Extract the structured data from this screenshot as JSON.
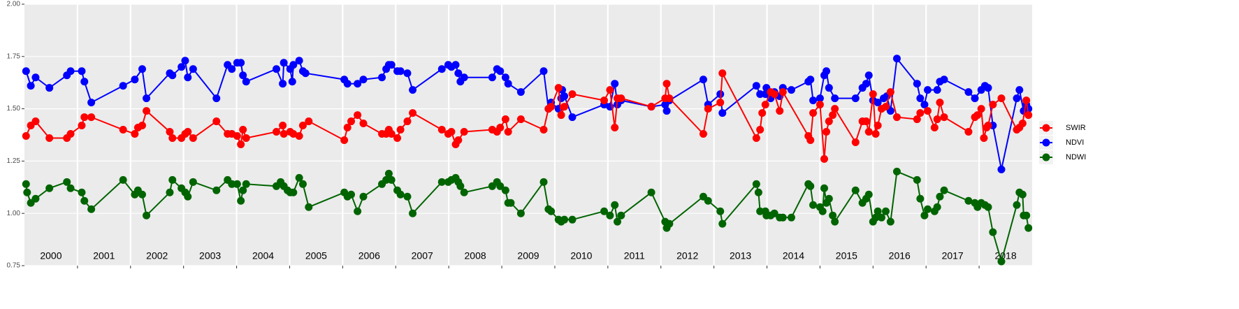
{
  "chart_data": {
    "type": "line",
    "xlim": [
      2000,
      2019
    ],
    "xticks": [
      2001,
      2002,
      2003,
      2004,
      2005,
      2006,
      2007,
      2008,
      2009,
      2010,
      2011,
      2012,
      2013,
      2014,
      2015,
      2016,
      2017,
      2018
    ],
    "year_labels": [
      2000,
      2001,
      2002,
      2003,
      2004,
      2005,
      2006,
      2007,
      2008,
      2009,
      2010,
      2011,
      2012,
      2013,
      2014,
      2015,
      2016,
      2017,
      2018
    ],
    "ylim": [
      0.75,
      2.0
    ],
    "yticks": [
      {
        "value": 0.75,
        "label": "0.75"
      },
      {
        "value": 1,
        "label": "1.00"
      },
      {
        "value": 1.25,
        "label": "1.25"
      },
      {
        "value": 1.5,
        "label": "1.50"
      },
      {
        "value": 1.75,
        "label": "1.75"
      },
      {
        "value": 2,
        "label": "2.00"
      }
    ],
    "grid": true,
    "legend": "right",
    "series": [
      {
        "name": "SWIR",
        "color": "#ff0000",
        "x": [
          2000.03,
          2000.12,
          2000.21,
          2000.47,
          2000.8,
          2000.87,
          2001.08,
          2001.13,
          2001.26,
          2001.86,
          2002.08,
          2002.14,
          2002.22,
          2002.3,
          2002.74,
          2002.79,
          2002.96,
          2003.03,
          2003.08,
          2003.18,
          2003.62,
          2003.83,
          2003.91,
          2004.01,
          2004.08,
          2004.12,
          2004.18,
          2004.75,
          2004.87,
          2004.89,
          2005.01,
          2005.07,
          2005.18,
          2005.25,
          2005.36,
          2006.03,
          2006.09,
          2006.16,
          2006.28,
          2006.39,
          2006.74,
          2006.82,
          2006.87,
          2006.92,
          2007.03,
          2007.09,
          2007.22,
          2007.32,
          2007.87,
          2007.99,
          2008.05,
          2008.13,
          2008.18,
          2008.29,
          2008.82,
          2008.91,
          2008.97,
          2009.07,
          2009.12,
          2009.36,
          2009.79,
          2009.88,
          2009.93,
          2010.07,
          2010.12,
          2010.18,
          2010.33,
          2010.93,
          2011.04,
          2011.13,
          2011.18,
          2011.25,
          2011.82,
          2012.08,
          2012.11,
          2012.16,
          2012.8,
          2012.89,
          2013.12,
          2013.16,
          2013.8,
          2013.87,
          2013.91,
          2013.97,
          2014.07,
          2014.14,
          2014.24,
          2014.3,
          2014.78,
          2014.82,
          2014.87,
          2015.0,
          2015.08,
          2015.12,
          2015.17,
          2015.24,
          2015.28,
          2015.67,
          2015.8,
          2015.87,
          2015.92,
          2016.0,
          2016.05,
          2016.09,
          2016.16,
          2016.24,
          2016.33,
          2016.45,
          2016.83,
          2016.89,
          2017.03,
          2017.16,
          2017.21,
          2017.26,
          2017.34,
          2017.8,
          2017.92,
          2017.97,
          2018.04,
          2018.09,
          2018.14,
          2018.17,
          2018.26,
          2018.42,
          2018.71,
          2018.76,
          2018.82,
          2018.89,
          2018.93
        ],
        "values": [
          1.37,
          1.42,
          1.44,
          1.36,
          1.36,
          1.38,
          1.42,
          1.46,
          1.46,
          1.4,
          1.38,
          1.41,
          1.42,
          1.49,
          1.39,
          1.36,
          1.36,
          1.38,
          1.39,
          1.36,
          1.44,
          1.38,
          1.38,
          1.37,
          1.33,
          1.4,
          1.36,
          1.39,
          1.42,
          1.38,
          1.39,
          1.38,
          1.37,
          1.42,
          1.44,
          1.35,
          1.41,
          1.44,
          1.47,
          1.43,
          1.38,
          1.38,
          1.4,
          1.38,
          1.36,
          1.4,
          1.44,
          1.48,
          1.4,
          1.38,
          1.39,
          1.33,
          1.35,
          1.39,
          1.4,
          1.39,
          1.41,
          1.45,
          1.39,
          1.45,
          1.4,
          1.5,
          1.51,
          1.6,
          1.47,
          1.51,
          1.57,
          1.54,
          1.59,
          1.41,
          1.55,
          1.55,
          1.51,
          1.55,
          1.62,
          1.55,
          1.38,
          1.5,
          1.53,
          1.67,
          1.36,
          1.4,
          1.48,
          1.52,
          1.58,
          1.57,
          1.49,
          1.58,
          1.37,
          1.35,
          1.48,
          1.52,
          1.26,
          1.39,
          1.44,
          1.47,
          1.5,
          1.34,
          1.44,
          1.44,
          1.39,
          1.57,
          1.38,
          1.42,
          1.5,
          1.51,
          1.58,
          1.46,
          1.45,
          1.48,
          1.49,
          1.41,
          1.45,
          1.53,
          1.46,
          1.39,
          1.46,
          1.47,
          1.5,
          1.36,
          1.41,
          1.42,
          1.52,
          1.55,
          1.4,
          1.41,
          1.43,
          1.54,
          1.47
        ]
      },
      {
        "name": "NDVI",
        "color": "#0000ff",
        "x": [
          2000.03,
          2000.12,
          2000.21,
          2000.47,
          2000.8,
          2000.87,
          2001.08,
          2001.13,
          2001.26,
          2001.86,
          2002.08,
          2002.22,
          2002.3,
          2002.74,
          2002.79,
          2002.96,
          2003.03,
          2003.08,
          2003.18,
          2003.62,
          2003.83,
          2003.91,
          2004.01,
          2004.08,
          2004.12,
          2004.18,
          2004.75,
          2004.87,
          2004.89,
          2005.01,
          2005.05,
          2005.07,
          2005.18,
          2005.25,
          2005.3,
          2006.03,
          2006.09,
          2006.28,
          2006.39,
          2006.74,
          2006.82,
          2006.87,
          2006.92,
          2007.03,
          2007.09,
          2007.22,
          2007.32,
          2007.87,
          2007.99,
          2008.05,
          2008.13,
          2008.18,
          2008.22,
          2008.29,
          2008.82,
          2008.91,
          2008.97,
          2009.07,
          2009.12,
          2009.36,
          2009.79,
          2009.88,
          2009.93,
          2010.07,
          2010.12,
          2010.14,
          2010.18,
          2010.33,
          2010.93,
          2011.04,
          2011.13,
          2011.18,
          2011.25,
          2011.82,
          2012.08,
          2012.11,
          2012.16,
          2012.8,
          2012.89,
          2013.12,
          2013.16,
          2013.8,
          2013.87,
          2013.97,
          2013.99,
          2014.07,
          2014.14,
          2014.24,
          2014.3,
          2014.46,
          2014.78,
          2014.82,
          2014.87,
          2015.0,
          2015.08,
          2015.12,
          2015.17,
          2015.28,
          2015.67,
          2015.8,
          2015.87,
          2015.92,
          2016.0,
          2016.09,
          2016.2,
          2016.26,
          2016.33,
          2016.45,
          2016.83,
          2016.89,
          2016.97,
          2017.03,
          2017.21,
          2017.26,
          2017.34,
          2017.8,
          2017.92,
          2018.04,
          2018.11,
          2018.17,
          2018.26,
          2018.42,
          2018.71,
          2018.76,
          2018.84,
          2018.89,
          2018.93
        ],
        "values": [
          1.68,
          1.61,
          1.65,
          1.6,
          1.66,
          1.68,
          1.68,
          1.63,
          1.53,
          1.61,
          1.64,
          1.69,
          1.55,
          1.67,
          1.66,
          1.7,
          1.73,
          1.65,
          1.69,
          1.55,
          1.71,
          1.69,
          1.72,
          1.72,
          1.66,
          1.63,
          1.69,
          1.62,
          1.72,
          1.69,
          1.63,
          1.71,
          1.73,
          1.68,
          1.67,
          1.64,
          1.62,
          1.62,
          1.64,
          1.65,
          1.69,
          1.71,
          1.71,
          1.68,
          1.68,
          1.67,
          1.59,
          1.69,
          1.71,
          1.7,
          1.71,
          1.67,
          1.63,
          1.65,
          1.65,
          1.69,
          1.68,
          1.65,
          1.62,
          1.58,
          1.68,
          1.5,
          1.53,
          1.5,
          1.55,
          1.59,
          1.56,
          1.46,
          1.52,
          1.51,
          1.62,
          1.52,
          1.54,
          1.51,
          1.52,
          1.49,
          1.54,
          1.64,
          1.52,
          1.57,
          1.48,
          1.61,
          1.57,
          1.57,
          1.6,
          1.55,
          1.58,
          1.56,
          1.6,
          1.59,
          1.63,
          1.64,
          1.54,
          1.55,
          1.66,
          1.68,
          1.6,
          1.55,
          1.55,
          1.6,
          1.62,
          1.66,
          1.54,
          1.53,
          1.55,
          1.56,
          1.49,
          1.74,
          1.62,
          1.55,
          1.52,
          1.59,
          1.59,
          1.63,
          1.64,
          1.58,
          1.55,
          1.59,
          1.61,
          1.6,
          1.42,
          1.21,
          1.55,
          1.59,
          1.49,
          1.52,
          1.5
        ]
      },
      {
        "name": "NDWI",
        "color": "#006400",
        "x": [
          2000.03,
          2000.05,
          2000.12,
          2000.21,
          2000.47,
          2000.8,
          2000.87,
          2001.08,
          2001.13,
          2001.26,
          2001.86,
          2002.08,
          2002.14,
          2002.22,
          2002.3,
          2002.74,
          2002.79,
          2002.96,
          2003.03,
          2003.08,
          2003.18,
          2003.62,
          2003.83,
          2003.91,
          2004.01,
          2004.08,
          2004.12,
          2004.18,
          2004.75,
          2004.83,
          2004.89,
          2004.96,
          2005.01,
          2005.07,
          2005.18,
          2005.25,
          2005.36,
          2006.03,
          2006.09,
          2006.16,
          2006.28,
          2006.39,
          2006.74,
          2006.82,
          2006.87,
          2006.92,
          2007.03,
          2007.09,
          2007.22,
          2007.32,
          2007.87,
          2007.99,
          2008.05,
          2008.13,
          2008.18,
          2008.22,
          2008.29,
          2008.82,
          2008.91,
          2008.97,
          2009.07,
          2009.12,
          2009.17,
          2009.36,
          2009.79,
          2009.88,
          2009.93,
          2010.07,
          2010.12,
          2010.18,
          2010.33,
          2010.93,
          2011.04,
          2011.13,
          2011.18,
          2011.25,
          2011.82,
          2012.08,
          2012.11,
          2012.16,
          2012.8,
          2012.89,
          2013.12,
          2013.16,
          2013.8,
          2013.84,
          2013.87,
          2013.97,
          2013.99,
          2014.07,
          2014.14,
          2014.24,
          2014.3,
          2014.46,
          2014.78,
          2014.82,
          2014.87,
          2015.0,
          2015.05,
          2015.08,
          2015.12,
          2015.17,
          2015.24,
          2015.28,
          2015.67,
          2015.8,
          2015.87,
          2015.92,
          2016.0,
          2016.05,
          2016.09,
          2016.16,
          2016.24,
          2016.33,
          2016.45,
          2016.83,
          2016.89,
          2016.97,
          2017.03,
          2017.16,
          2017.21,
          2017.26,
          2017.34,
          2017.8,
          2017.92,
          2017.97,
          2018.04,
          2018.11,
          2018.17,
          2018.26,
          2018.42,
          2018.71,
          2018.76,
          2018.82,
          2018.84,
          2018.89,
          2018.93
        ],
        "values": [
          1.14,
          1.1,
          1.05,
          1.07,
          1.12,
          1.15,
          1.12,
          1.1,
          1.06,
          1.02,
          1.16,
          1.09,
          1.11,
          1.09,
          0.99,
          1.1,
          1.16,
          1.12,
          1.1,
          1.08,
          1.15,
          1.11,
          1.16,
          1.14,
          1.14,
          1.06,
          1.11,
          1.14,
          1.13,
          1.15,
          1.13,
          1.11,
          1.1,
          1.1,
          1.17,
          1.14,
          1.03,
          1.1,
          1.08,
          1.09,
          1.01,
          1.08,
          1.14,
          1.16,
          1.19,
          1.16,
          1.11,
          1.09,
          1.08,
          1.0,
          1.15,
          1.15,
          1.16,
          1.17,
          1.15,
          1.13,
          1.1,
          1.13,
          1.15,
          1.13,
          1.11,
          1.05,
          1.05,
          1.0,
          1.15,
          1.02,
          1.01,
          0.97,
          0.96,
          0.97,
          0.97,
          1.01,
          0.99,
          1.04,
          0.96,
          0.99,
          1.1,
          0.96,
          0.93,
          0.95,
          1.08,
          1.06,
          1.01,
          0.95,
          1.14,
          1.1,
          1.01,
          1.01,
          0.99,
          0.99,
          1.0,
          0.98,
          0.98,
          0.98,
          1.14,
          1.13,
          1.04,
          1.03,
          1.01,
          1.12,
          1.05,
          1.07,
          0.99,
          0.96,
          1.11,
          1.05,
          1.07,
          1.09,
          0.96,
          0.98,
          1.01,
          0.98,
          1.01,
          0.96,
          1.2,
          1.16,
          1.07,
          0.99,
          1.02,
          1.01,
          1.03,
          1.08,
          1.11,
          1.06,
          1.05,
          1.03,
          1.05,
          1.04,
          1.03,
          0.91,
          0.77,
          1.04,
          1.1,
          1.09,
          0.99,
          0.99,
          0.93
        ]
      }
    ]
  }
}
